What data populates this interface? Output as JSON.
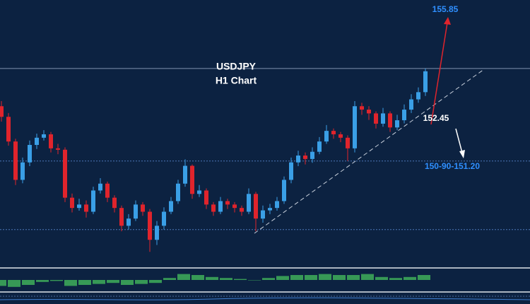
{
  "chart_data": {
    "type": "candlestick",
    "title": "USDJPY",
    "subtitle": "H1 Chart",
    "annotations": [
      "155.85",
      "152.45",
      "150-90-151.20"
    ],
    "ylim": [
      148.1,
      155.9
    ],
    "levels": [
      153.9,
      151.2,
      149.2
    ],
    "up_color": "#3a9fe6",
    "down_color": "#e0242c",
    "ohlc": [
      [
        152.8,
        152.95,
        152.35,
        152.49
      ],
      [
        152.49,
        152.6,
        151.65,
        151.77
      ],
      [
        151.77,
        151.85,
        150.5,
        150.65
      ],
      [
        150.65,
        151.3,
        150.55,
        151.16
      ],
      [
        151.16,
        151.8,
        151.05,
        151.67
      ],
      [
        151.67,
        152.0,
        151.55,
        151.88
      ],
      [
        151.88,
        152.1,
        151.8,
        151.98
      ],
      [
        151.98,
        152.05,
        151.45,
        151.57
      ],
      [
        151.57,
        151.7,
        151.4,
        151.53
      ],
      [
        151.53,
        151.6,
        150.0,
        150.13
      ],
      [
        150.13,
        150.25,
        149.7,
        149.83
      ],
      [
        149.83,
        150.1,
        149.75,
        149.93
      ],
      [
        149.93,
        150.05,
        149.55,
        149.72
      ],
      [
        149.72,
        150.45,
        149.65,
        150.34
      ],
      [
        150.34,
        150.7,
        150.25,
        150.54
      ],
      [
        150.54,
        150.6,
        150.0,
        150.13
      ],
      [
        150.13,
        150.2,
        149.7,
        149.83
      ],
      [
        149.83,
        149.9,
        149.15,
        149.31
      ],
      [
        149.31,
        149.65,
        149.2,
        149.52
      ],
      [
        149.52,
        150.05,
        149.45,
        149.93
      ],
      [
        149.93,
        150.0,
        149.6,
        149.72
      ],
      [
        149.72,
        149.8,
        148.55,
        148.9
      ],
      [
        148.9,
        149.45,
        148.75,
        149.31
      ],
      [
        149.31,
        149.85,
        149.2,
        149.72
      ],
      [
        149.72,
        150.15,
        149.65,
        150.03
      ],
      [
        150.03,
        150.65,
        149.95,
        150.54
      ],
      [
        150.54,
        151.25,
        150.45,
        151.06
      ],
      [
        151.06,
        151.1,
        150.1,
        150.24
      ],
      [
        150.24,
        150.5,
        150.15,
        150.34
      ],
      [
        150.34,
        150.4,
        149.8,
        149.93
      ],
      [
        149.93,
        150.0,
        149.6,
        149.72
      ],
      [
        149.72,
        150.15,
        149.65,
        150.03
      ],
      [
        150.03,
        150.1,
        149.8,
        149.93
      ],
      [
        149.93,
        150.0,
        149.7,
        149.83
      ],
      [
        149.83,
        149.9,
        149.6,
        149.72
      ],
      [
        149.72,
        150.4,
        149.65,
        150.24
      ],
      [
        150.24,
        150.3,
        149.15,
        149.52
      ],
      [
        149.52,
        149.9,
        149.4,
        149.76
      ],
      [
        149.76,
        149.95,
        149.65,
        149.83
      ],
      [
        149.83,
        150.15,
        149.75,
        150.03
      ],
      [
        150.03,
        150.75,
        149.95,
        150.65
      ],
      [
        150.65,
        151.3,
        150.55,
        151.16
      ],
      [
        151.16,
        151.5,
        151.05,
        151.36
      ],
      [
        151.36,
        151.45,
        151.1,
        151.26
      ],
      [
        151.26,
        151.6,
        151.15,
        151.47
      ],
      [
        151.47,
        151.9,
        151.4,
        151.77
      ],
      [
        151.77,
        152.25,
        151.7,
        152.08
      ],
      [
        152.08,
        152.15,
        151.85,
        151.98
      ],
      [
        151.98,
        152.05,
        151.75,
        151.88
      ],
      [
        151.88,
        151.95,
        151.2,
        151.57
      ],
      [
        151.57,
        152.95,
        151.45,
        152.8
      ],
      [
        152.8,
        152.9,
        152.55,
        152.7
      ],
      [
        152.7,
        152.8,
        152.4,
        152.59
      ],
      [
        152.59,
        152.65,
        152.15,
        152.29
      ],
      [
        152.29,
        152.75,
        152.2,
        152.59
      ],
      [
        152.59,
        152.65,
        152.05,
        152.18
      ],
      [
        152.18,
        152.55,
        152.1,
        152.39
      ],
      [
        152.39,
        152.85,
        152.3,
        152.7
      ],
      [
        152.7,
        153.15,
        152.6,
        153.0
      ],
      [
        153.0,
        153.35,
        152.9,
        153.21
      ],
      [
        153.21,
        153.9,
        153.1,
        153.82
      ]
    ],
    "oscillator": {
      "color": "#3fae5a",
      "ylim": [
        -1,
        1
      ],
      "values": [
        -0.6,
        -0.7,
        -0.5,
        -0.2,
        -0.1,
        -0.6,
        -0.5,
        -0.4,
        -0.3,
        -0.5,
        -0.4,
        -0.3,
        0.2,
        0.6,
        0.5,
        0.3,
        0.2,
        0.1,
        0.0,
        0.2,
        0.4,
        0.5,
        0.5,
        0.6,
        0.5,
        0.5,
        0.6,
        0.3,
        0.2,
        0.3,
        0.5
      ]
    }
  }
}
